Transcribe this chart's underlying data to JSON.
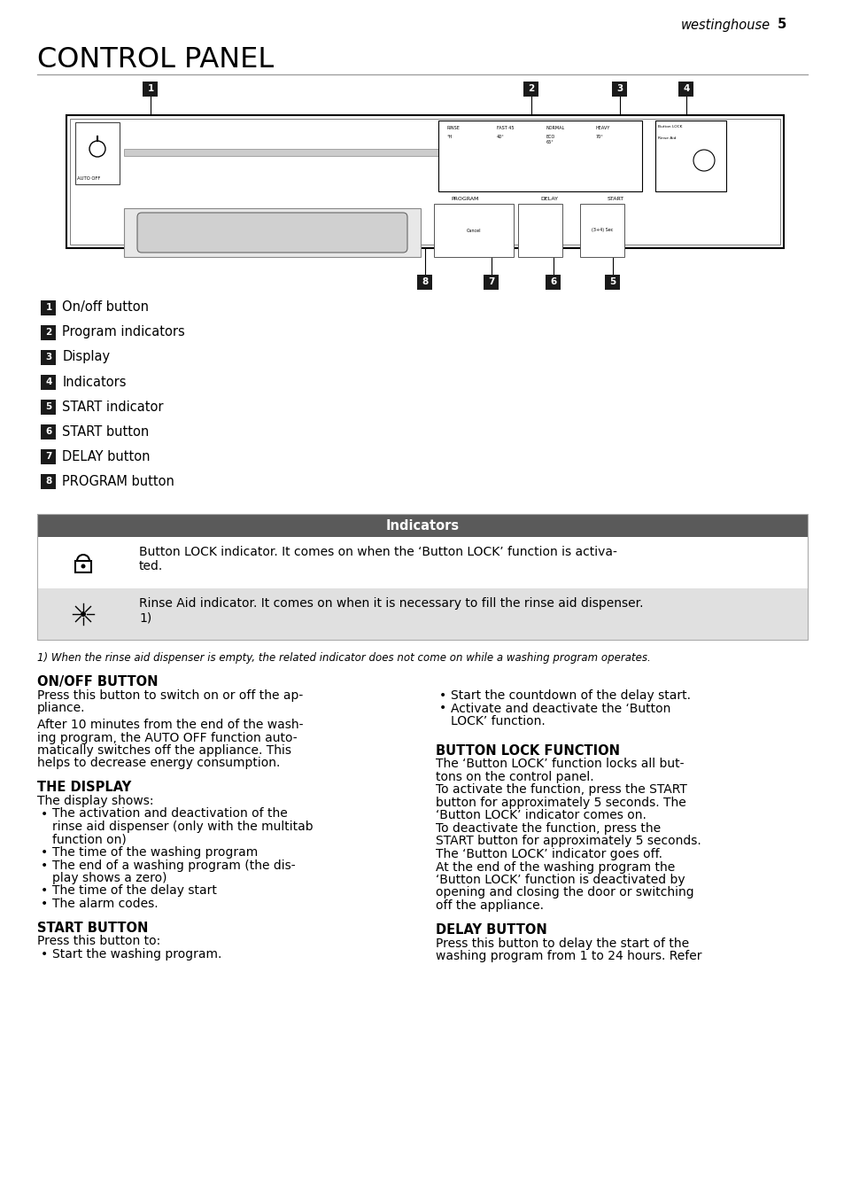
{
  "page_header_italic": "westinghouse",
  "page_header_bold": "5",
  "title": "CONTROL PANEL",
  "numbered_labels": [
    {
      "num": "1",
      "text": "On/off button"
    },
    {
      "num": "2",
      "text": "Program indicators"
    },
    {
      "num": "3",
      "text": "Display"
    },
    {
      "num": "4",
      "text": "Indicators"
    },
    {
      "num": "5",
      "text": "START indicator"
    },
    {
      "num": "6",
      "text": "START button"
    },
    {
      "num": "7",
      "text": "DELAY button"
    },
    {
      "num": "8",
      "text": "PROGRAM button"
    }
  ],
  "table_header": "Indicators",
  "table_row1_icon": "lock",
  "table_row1_text": "Button LOCK indicator. It comes on when the ‘Button LOCK’ function is activa-\nted.",
  "table_row2_icon": "rinse",
  "table_row2_text": "Rinse Aid indicator. It comes on when it is necessary to fill the rinse aid dispenser.\n1)",
  "footnote": "1) When the rinse aid dispenser is empty, the related indicator does not come on while a washing program operates.",
  "left_col_sections": [
    {
      "heading": "ON/OFF BUTTON",
      "body": "Press this button to switch on or off the ap-\npliance.\nAfter 10 minutes from the end of the wash-\ning program, the AUTO OFF function auto-\nmatically switches off the appliance. This\nhelps to decrease energy consumption."
    },
    {
      "heading": "THE DISPLAY",
      "body": "The display shows:",
      "bullets": [
        "The activation and deactivation of the\n  rinse aid dispenser (only with the multitab\n  function on)",
        "The time of the washing program",
        "The end of a washing program (the dis-\n  play shows a zero)",
        "The time of the delay start",
        "The alarm codes."
      ]
    },
    {
      "heading": "START BUTTON",
      "body": "Press this button to:",
      "bullets": [
        "Start the washing program."
      ]
    }
  ],
  "right_col_bullets_intro": [
    "Start the countdown of the delay start.",
    "Activate and deactivate the ‘Button\n  LOCK’ function."
  ],
  "right_col_sections": [
    {
      "heading": "BUTTON LOCK FUNCTION",
      "body": "The ‘Button LOCK’ function locks all but-\ntons on the control panel.\nTo activate the function, press the START\nbutton for approximately 5 seconds. The\n‘Button LOCK’ indicator comes on.\nTo deactivate the function, press the\nSTART button for approximately 5 seconds.\nThe ‘Button LOCK’ indicator goes off.\nAt the end of the washing program the\n‘Button LOCK’ function is deactivated by\nopening and closing the door or switching\noff the appliance."
    },
    {
      "heading": "DELAY BUTTON",
      "body": "Press this button to delay the start of the\nwashing program from 1 to 24 hours. Refer"
    }
  ],
  "bg_color": "#ffffff",
  "label_bg": "#1a1a1a",
  "label_fg": "#ffffff",
  "table_header_bg": "#5a5a5a",
  "table_header_fg": "#ffffff",
  "table_row1_bg": "#ffffff",
  "table_row2_bg": "#e0e0e0",
  "table_border": "#aaaaaa"
}
